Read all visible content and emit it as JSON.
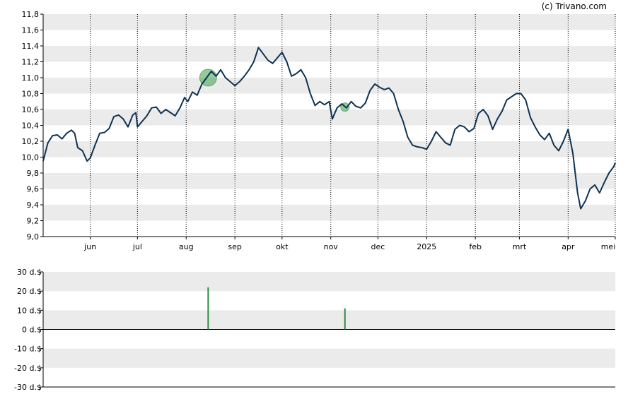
{
  "credit": "(c) Trivano.com",
  "colors": {
    "line": "#0f3352",
    "band": "#ebebeb",
    "marker": "#3d9e4a",
    "dividend_bar": "#2e8b3e",
    "axis": "#000000",
    "vgrid": "#000000"
  },
  "chart_data": [
    {
      "type": "line",
      "title": "",
      "xlabel": "",
      "ylabel": "",
      "ylim": [
        9.0,
        11.8
      ],
      "y_ticks": [
        "9,0",
        "9,2",
        "9,4",
        "9,6",
        "9,8",
        "10,0",
        "10,2",
        "10,4",
        "10,6",
        "10,8",
        "11,0",
        "11,2",
        "11,4",
        "11,6",
        "11,8"
      ],
      "x_tick_labels": [
        "jun",
        "jul",
        "aug",
        "sep",
        "okt",
        "nov",
        "dec",
        "2025",
        "feb",
        "mrt",
        "apr",
        "mei"
      ],
      "x_tick_dates": [
        "2024-06-01",
        "2024-07-01",
        "2024-08-01",
        "2024-09-01",
        "2024-10-01",
        "2024-11-01",
        "2024-12-01",
        "2025-01-01",
        "2025-02-01",
        "2025-03-01",
        "2025-04-01",
        "2025-05-01"
      ],
      "x_range": [
        "2024-05-02",
        "2025-05-01"
      ],
      "grid": "alternating horizontal bands, dotted vertical lines at month ticks",
      "series": [
        {
          "points": [
            [
              "2024-05-02",
              9.95
            ],
            [
              "2024-05-05",
              10.18
            ],
            [
              "2024-05-08",
              10.27
            ],
            [
              "2024-05-11",
              10.28
            ],
            [
              "2024-05-14",
              10.23
            ],
            [
              "2024-05-17",
              10.3
            ],
            [
              "2024-05-20",
              10.34
            ],
            [
              "2024-05-22",
              10.3
            ],
            [
              "2024-05-24",
              10.12
            ],
            [
              "2024-05-27",
              10.08
            ],
            [
              "2024-05-30",
              9.95
            ],
            [
              "2024-06-01",
              9.99
            ],
            [
              "2024-06-04",
              10.15
            ],
            [
              "2024-06-07",
              10.3
            ],
            [
              "2024-06-10",
              10.31
            ],
            [
              "2024-06-13",
              10.36
            ],
            [
              "2024-06-16",
              10.51
            ],
            [
              "2024-06-19",
              10.53
            ],
            [
              "2024-06-22",
              10.48
            ],
            [
              "2024-06-25",
              10.38
            ],
            [
              "2024-06-28",
              10.53
            ],
            [
              "2024-06-30",
              10.56
            ],
            [
              "2024-07-01",
              10.38
            ],
            [
              "2024-07-04",
              10.45
            ],
            [
              "2024-07-07",
              10.52
            ],
            [
              "2024-07-10",
              10.62
            ],
            [
              "2024-07-13",
              10.63
            ],
            [
              "2024-07-16",
              10.55
            ],
            [
              "2024-07-19",
              10.6
            ],
            [
              "2024-07-22",
              10.56
            ],
            [
              "2024-07-25",
              10.52
            ],
            [
              "2024-07-28",
              10.62
            ],
            [
              "2024-07-31",
              10.75
            ],
            [
              "2024-08-02",
              10.7
            ],
            [
              "2024-08-05",
              10.82
            ],
            [
              "2024-08-08",
              10.78
            ],
            [
              "2024-08-11",
              10.92
            ],
            [
              "2024-08-14",
              11.0
            ],
            [
              "2024-08-17",
              11.08
            ],
            [
              "2024-08-20",
              11.02
            ],
            [
              "2024-08-23",
              11.1
            ],
            [
              "2024-08-26",
              11.0
            ],
            [
              "2024-08-29",
              10.95
            ],
            [
              "2024-09-01",
              10.9
            ],
            [
              "2024-09-04",
              10.95
            ],
            [
              "2024-09-07",
              11.02
            ],
            [
              "2024-09-10",
              11.1
            ],
            [
              "2024-09-13",
              11.2
            ],
            [
              "2024-09-16",
              11.38
            ],
            [
              "2024-09-19",
              11.3
            ],
            [
              "2024-09-22",
              11.22
            ],
            [
              "2024-09-25",
              11.18
            ],
            [
              "2024-09-28",
              11.25
            ],
            [
              "2024-10-01",
              11.32
            ],
            [
              "2024-10-04",
              11.2
            ],
            [
              "2024-10-07",
              11.02
            ],
            [
              "2024-10-10",
              11.05
            ],
            [
              "2024-10-13",
              11.1
            ],
            [
              "2024-10-16",
              11.0
            ],
            [
              "2024-10-19",
              10.8
            ],
            [
              "2024-10-22",
              10.65
            ],
            [
              "2024-10-25",
              10.7
            ],
            [
              "2024-10-28",
              10.66
            ],
            [
              "2024-10-31",
              10.7
            ],
            [
              "2024-11-02",
              10.48
            ],
            [
              "2024-11-05",
              10.62
            ],
            [
              "2024-11-08",
              10.67
            ],
            [
              "2024-11-11",
              10.62
            ],
            [
              "2024-11-14",
              10.7
            ],
            [
              "2024-11-17",
              10.64
            ],
            [
              "2024-11-20",
              10.62
            ],
            [
              "2024-11-23",
              10.68
            ],
            [
              "2024-11-26",
              10.84
            ],
            [
              "2024-11-29",
              10.92
            ],
            [
              "2024-12-02",
              10.88
            ],
            [
              "2024-12-05",
              10.85
            ],
            [
              "2024-12-08",
              10.87
            ],
            [
              "2024-12-11",
              10.8
            ],
            [
              "2024-12-14",
              10.6
            ],
            [
              "2024-12-17",
              10.45
            ],
            [
              "2024-12-20",
              10.25
            ],
            [
              "2024-12-23",
              10.15
            ],
            [
              "2024-12-26",
              10.13
            ],
            [
              "2024-12-29",
              10.12
            ],
            [
              "2025-01-01",
              10.1
            ],
            [
              "2025-01-04",
              10.2
            ],
            [
              "2025-01-07",
              10.32
            ],
            [
              "2025-01-10",
              10.25
            ],
            [
              "2025-01-13",
              10.18
            ],
            [
              "2025-01-16",
              10.15
            ],
            [
              "2025-01-19",
              10.35
            ],
            [
              "2025-01-22",
              10.4
            ],
            [
              "2025-01-25",
              10.38
            ],
            [
              "2025-01-28",
              10.32
            ],
            [
              "2025-01-31",
              10.36
            ],
            [
              "2025-02-03",
              10.55
            ],
            [
              "2025-02-06",
              10.6
            ],
            [
              "2025-02-09",
              10.52
            ],
            [
              "2025-02-12",
              10.35
            ],
            [
              "2025-02-15",
              10.48
            ],
            [
              "2025-02-18",
              10.58
            ],
            [
              "2025-02-21",
              10.72
            ],
            [
              "2025-02-24",
              10.76
            ],
            [
              "2025-02-27",
              10.8
            ],
            [
              "2025-03-02",
              10.8
            ],
            [
              "2025-03-05",
              10.72
            ],
            [
              "2025-03-08",
              10.5
            ],
            [
              "2025-03-11",
              10.38
            ],
            [
              "2025-03-14",
              10.28
            ],
            [
              "2025-03-17",
              10.22
            ],
            [
              "2025-03-20",
              10.3
            ],
            [
              "2025-03-23",
              10.15
            ],
            [
              "2025-03-26",
              10.08
            ],
            [
              "2025-03-29",
              10.2
            ],
            [
              "2025-04-01",
              10.35
            ],
            [
              "2025-04-04",
              10.05
            ],
            [
              "2025-04-07",
              9.55
            ],
            [
              "2025-04-09",
              9.35
            ],
            [
              "2025-04-12",
              9.45
            ],
            [
              "2025-04-15",
              9.6
            ],
            [
              "2025-04-18",
              9.65
            ],
            [
              "2025-04-21",
              9.55
            ],
            [
              "2025-04-24",
              9.68
            ],
            [
              "2025-04-27",
              9.8
            ],
            [
              "2025-04-30",
              9.88
            ],
            [
              "2025-05-01",
              9.93
            ]
          ]
        }
      ],
      "markers": [
        {
          "date": "2024-08-15",
          "value": 11.0,
          "size": "large"
        },
        {
          "date": "2024-11-10",
          "value": 10.63,
          "size": "small"
        }
      ]
    },
    {
      "type": "bar",
      "title": "",
      "xlabel": "",
      "ylabel": "",
      "ylim": [
        -30,
        30
      ],
      "y_ticks": [
        "30 d.$",
        "20 d.$",
        "10 d.$",
        "0 d.$",
        "-10 d.$",
        "-20 d.$",
        "-30 d.$"
      ],
      "bars": [
        {
          "date": "2024-08-15",
          "value": 22
        },
        {
          "date": "2024-11-10",
          "value": 11
        }
      ]
    }
  ]
}
